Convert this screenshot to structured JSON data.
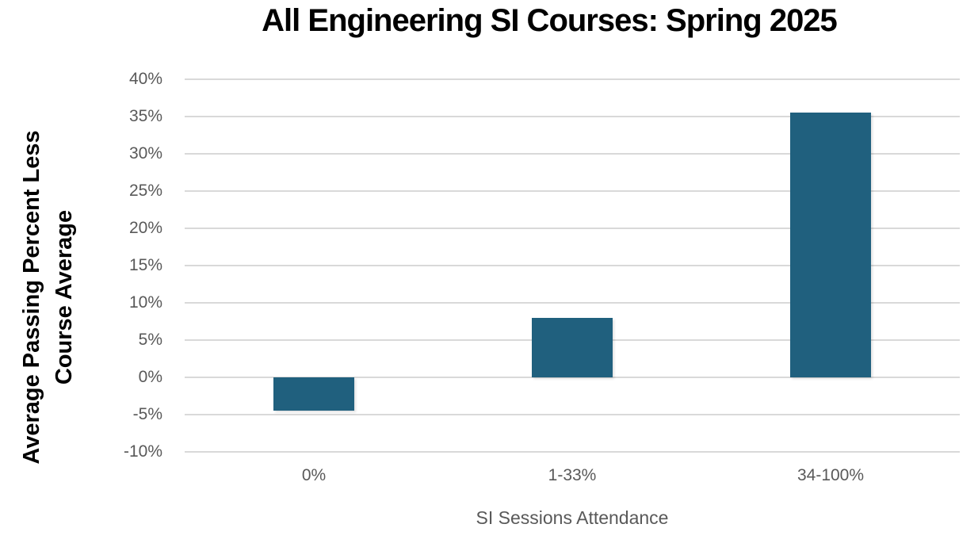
{
  "chart_data": {
    "type": "bar",
    "title": "All Engineering SI Courses: Spring 2025",
    "xlabel": "SI Sessions Attendance",
    "ylabel": "Average Passing Percent Less Course Average",
    "ylabel_lines": [
      "Average Passing Percent Less",
      "Course Average"
    ],
    "categories": [
      "0%",
      "1-33%",
      "34-100%"
    ],
    "values": [
      -4.5,
      8.0,
      35.5
    ],
    "ylim": [
      -10,
      40
    ],
    "ytick_step": 5,
    "yticks": [
      {
        "label": "40%",
        "value": 40
      },
      {
        "label": "35%",
        "value": 35
      },
      {
        "label": "30%",
        "value": 30
      },
      {
        "label": "25%",
        "value": 25
      },
      {
        "label": "20%",
        "value": 20
      },
      {
        "label": "15%",
        "value": 15
      },
      {
        "label": "10%",
        "value": 10
      },
      {
        "label": "5%",
        "value": 5
      },
      {
        "label": "0%",
        "value": 0
      },
      {
        "label": "-5%",
        "value": -5
      },
      {
        "label": "-10%",
        "value": -10
      }
    ],
    "grid": true,
    "legend": "none",
    "colors": {
      "bar_fill": "#20607e",
      "gridline": "#d9d9d9",
      "tick_label": "#595959",
      "axis_title": "#595959",
      "title_text": "#000000"
    }
  }
}
